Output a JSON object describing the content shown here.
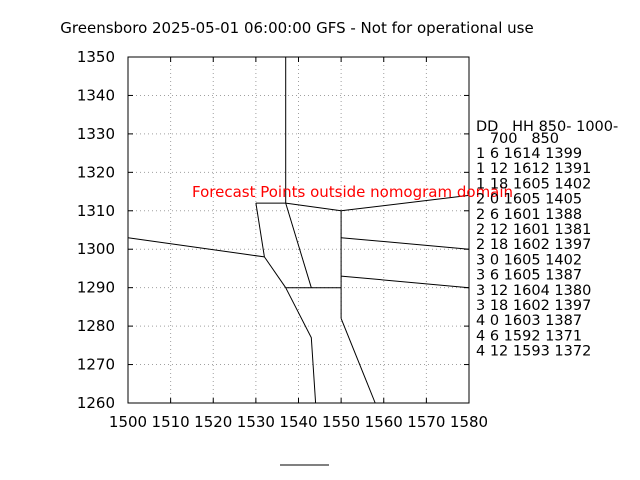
{
  "chart_data": {
    "type": "line",
    "title": "Greensboro 2025-05-01 06:00:00 GFS - Not for operational use",
    "xlabel": "",
    "ylabel": "",
    "xlim": [
      1500,
      1580
    ],
    "ylim": [
      1260,
      1350
    ],
    "x_ticks": [
      "1500",
      "1510",
      "1520",
      "1530",
      "1540",
      "1550",
      "1560",
      "1570",
      "1580"
    ],
    "y_ticks": [
      "1350",
      "1340",
      "1330",
      "1320",
      "1310",
      "1300",
      "1290",
      "1280",
      "1270",
      "1260"
    ],
    "grid": true,
    "annotation": "Forecast Points outside nomogram domain",
    "table_header_line1": "DD   HH 850- 1000-",
    "table_header_line2": "   700   850",
    "table_rows": [
      "1  6 1614 1399",
      "1 12 1612 1391",
      "1 18 1605 1402",
      "2  0 1605 1405",
      "2  6 1601 1388",
      "2 12 1601 1381",
      "2 18 1602 1397",
      "3  0 1605 1402",
      "3  6 1605 1387",
      "3 12 1604 1380",
      "3 18 1602 1397",
      "4  0 1603 1387",
      "4  6 1592 1371",
      "4 12 1593 1372"
    ],
    "series": [
      {
        "values": [
          [
            1537,
            1350
          ],
          [
            1537,
            1312
          ]
        ]
      },
      {
        "values": [
          [
            1530,
            1312
          ],
          [
            1537,
            1312
          ]
        ]
      },
      {
        "values": [
          [
            1537,
            1312
          ],
          [
            1550,
            1310
          ]
        ]
      },
      {
        "values": [
          [
            1550,
            1310
          ],
          [
            1580,
            1314
          ]
        ]
      },
      {
        "values": [
          [
            1530,
            1312
          ],
          [
            1532,
            1298
          ]
        ]
      },
      {
        "values": [
          [
            1500,
            1303
          ],
          [
            1532,
            1298
          ]
        ]
      },
      {
        "values": [
          [
            1532,
            1298
          ],
          [
            1537,
            1290
          ]
        ]
      },
      {
        "values": [
          [
            1537,
            1312
          ],
          [
            1543,
            1290
          ]
        ]
      },
      {
        "values": [
          [
            1550,
            1310
          ],
          [
            1550,
            1282
          ]
        ]
      },
      {
        "values": [
          [
            1537,
            1290
          ],
          [
            1550,
            1290
          ]
        ]
      },
      {
        "values": [
          [
            1550,
            1303
          ],
          [
            1580,
            1300
          ]
        ]
      },
      {
        "values": [
          [
            1550,
            1293
          ],
          [
            1580,
            1290
          ]
        ]
      },
      {
        "values": [
          [
            1537,
            1290
          ],
          [
            1543,
            1277
          ],
          [
            1544,
            1260
          ]
        ]
      },
      {
        "values": [
          [
            1550,
            1282
          ],
          [
            1558,
            1260
          ]
        ]
      }
    ]
  }
}
